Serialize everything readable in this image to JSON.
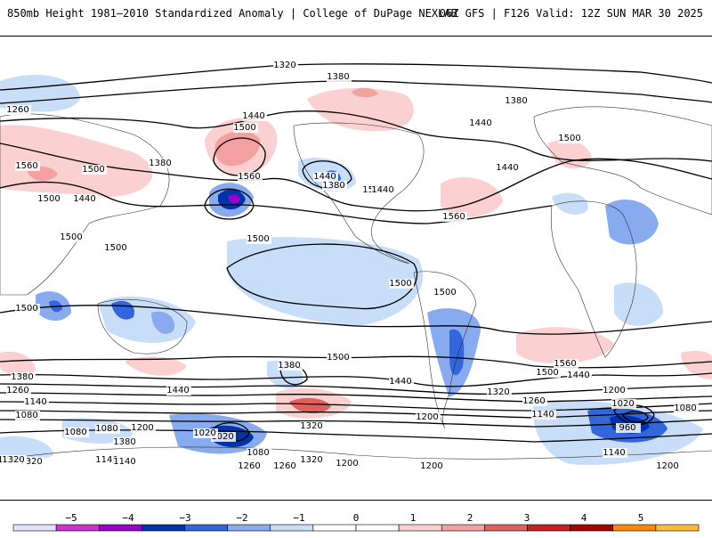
{
  "header": {
    "left_title": "850mb Height 1981–2010 Standardized Anomaly | College of DuPage NEXLAB",
    "right_title": "06Z GFS | F126 Valid: 12Z SUN MAR 30 2025"
  },
  "contour_labels": [
    "1320",
    "1380",
    "1260",
    "1440",
    "1500",
    "1560",
    "1380",
    "1440",
    "1380",
    "1380",
    "1440",
    "1500",
    "1440",
    "1500",
    "1560",
    "1500",
    "1440",
    "1500",
    "1560",
    "1500",
    "1500",
    "1500",
    "1500",
    "1500",
    "1440",
    "1500",
    "1380",
    "1260",
    "1140",
    "1080",
    "1020",
    "1020",
    "960",
    "1080",
    "1140",
    "1200",
    "1200",
    "1260",
    "1320",
    "1440",
    "1440",
    "1380",
    "1500",
    "1560",
    "1500",
    "1440",
    "1320",
    "1380",
    "1320",
    "1260",
    "1140",
    "1200",
    "1260",
    "1080",
    "1320",
    "1320",
    "1200",
    "1200",
    "1260",
    "1140",
    "1080",
    "1200",
    "1020",
    "1080",
    "1140"
  ],
  "colorbar": {
    "ticks": [
      "−5",
      "−4",
      "−3",
      "−2",
      "−1",
      "0",
      "1",
      "2",
      "3",
      "4",
      "5"
    ],
    "colors": [
      "#e0e0ff",
      "#cc33cc",
      "#9900cc",
      "#0033aa",
      "#3366dd",
      "#88aaee",
      "#c8ddf8",
      "#ffffff",
      "#ffffff",
      "#fbd0d0",
      "#f2a0a0",
      "#e06060",
      "#cc2020",
      "#aa0000",
      "#ff8800",
      "#ffbb33"
    ],
    "tick_values": [
      -5,
      -4,
      -3,
      -2,
      -1,
      0,
      1,
      2,
      3,
      4,
      5
    ]
  },
  "anomaly_colors": {
    "neg1": "#c8ddf8",
    "neg2": "#88aaee",
    "neg3": "#3366dd",
    "neg4": "#0033aa",
    "neg5": "#9900cc",
    "pos1": "#fbd0d0",
    "pos2": "#f2a0a0",
    "pos3": "#e06060"
  }
}
